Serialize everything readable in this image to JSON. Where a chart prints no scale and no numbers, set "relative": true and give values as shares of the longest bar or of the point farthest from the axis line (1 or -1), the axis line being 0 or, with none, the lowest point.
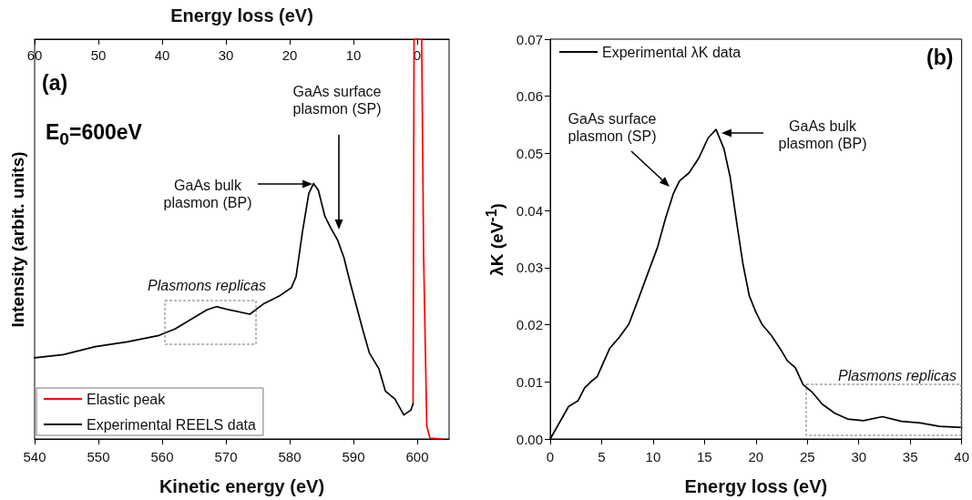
{
  "chart_data": [
    {
      "type": "line",
      "relative": true,
      "xlabel": "Kinetic energy (eV)",
      "x2label": "Energy loss (eV)",
      "ylabel": "Intensity (arbit. units)",
      "xlim": [
        540,
        605
      ],
      "xticks": [
        540,
        550,
        560,
        570,
        580,
        590,
        600
      ],
      "x2lim": [
        60,
        -5
      ],
      "x2ticks": [
        60,
        50,
        40,
        30,
        20,
        10,
        0
      ],
      "legend": "bottom left",
      "annotations": [
        "(a)",
        "E$_{0}$=600eV",
        "GaAs bulk plasmon (BP)",
        "GaAs surface plasmon (SP)",
        "Plasmons replicas"
      ],
      "series": [
        {
          "name": "Elastic peak",
          "color": "#ff0000",
          "x": [
            599.35,
            599.5,
            600.7,
            601,
            601.5,
            602,
            604
          ],
          "values": [
            0.088,
            1,
            1,
            0.462,
            0.032,
            0.002,
            0
          ]
        },
        {
          "name": "Experimental REELS data",
          "color": "#000000",
          "x": [
            540,
            544.5,
            549.5,
            554.5,
            559.5,
            562,
            564.5,
            567,
            568.5,
            570.5,
            573.75,
            576,
            578.5,
            580.25,
            581,
            582,
            583,
            583.75,
            584.5,
            585.5,
            586.5,
            587.5,
            588.5,
            589.5,
            591.5,
            592.5,
            594,
            595,
            596.5,
            597.9,
            599,
            599.35
          ],
          "values": [
            0.203,
            0.211,
            0.231,
            0.243,
            0.259,
            0.275,
            0.299,
            0.323,
            0.331,
            0.323,
            0.312,
            0.339,
            0.359,
            0.378,
            0.406,
            0.518,
            0.614,
            0.639,
            0.622,
            0.558,
            0.526,
            0.498,
            0.454,
            0.39,
            0.271,
            0.215,
            0.175,
            0.12,
            0.1,
            0.06,
            0.072,
            0.088
          ]
        }
      ]
    },
    {
      "type": "line",
      "xlabel": "Energy loss (eV)",
      "ylabel": "λK (eV$^{-1}$)",
      "xlim": [
        0,
        40
      ],
      "xticks": [
        0,
        5,
        10,
        15,
        20,
        25,
        30,
        35,
        40
      ],
      "ylim": [
        0,
        0.07
      ],
      "yticks": [
        {
          "value": 0,
          "label": "0.00"
        },
        {
          "value": 0.01,
          "label": "0.01"
        },
        {
          "value": 0.02,
          "label": "0.02"
        },
        {
          "value": 0.03,
          "label": "0.03"
        },
        {
          "value": 0.04,
          "label": "0.04"
        },
        {
          "value": 0.05,
          "label": "0.05"
        },
        {
          "value": 0.06,
          "label": "0.06"
        },
        {
          "value": 0.07,
          "label": "0.07"
        }
      ],
      "legend": "top left",
      "annotations": [
        "(b)",
        "GaAs surface plasmon (SP)",
        "GaAs bulk plasmon (BP)",
        "Plasmons replicas"
      ],
      "series": [
        {
          "name": "Experimental λK data",
          "color": "#000000",
          "x": [
            0,
            1.79,
            2.71,
            3.33,
            3.94,
            4.56,
            5.18,
            5.79,
            6.72,
            7.64,
            8.57,
            9.49,
            10.42,
            11.19,
            11.96,
            12.57,
            13.5,
            14.42,
            15.35,
            16.12,
            16.89,
            17.5,
            18.12,
            18.73,
            19.35,
            19.97,
            20.58,
            21.51,
            22.43,
            23.05,
            23.82,
            24.59,
            25.52,
            26.44,
            27.67,
            28.91,
            30.45,
            32.3,
            34.15,
            36,
            37.84,
            40
          ],
          "values": [
            0,
            0.0057,
            0.0067,
            0.0089,
            0.01,
            0.0109,
            0.0134,
            0.0159,
            0.0178,
            0.0201,
            0.0245,
            0.029,
            0.0335,
            0.0385,
            0.0429,
            0.0452,
            0.0466,
            0.0491,
            0.0527,
            0.0542,
            0.0508,
            0.0458,
            0.038,
            0.0307,
            0.0251,
            0.0223,
            0.0201,
            0.0181,
            0.0156,
            0.0137,
            0.0125,
            0.0095,
            0.0081,
            0.0061,
            0.0045,
            0.0035,
            0.0032,
            0.0039,
            0.0031,
            0.0028,
            0.0022,
            0.002
          ]
        }
      ]
    }
  ]
}
